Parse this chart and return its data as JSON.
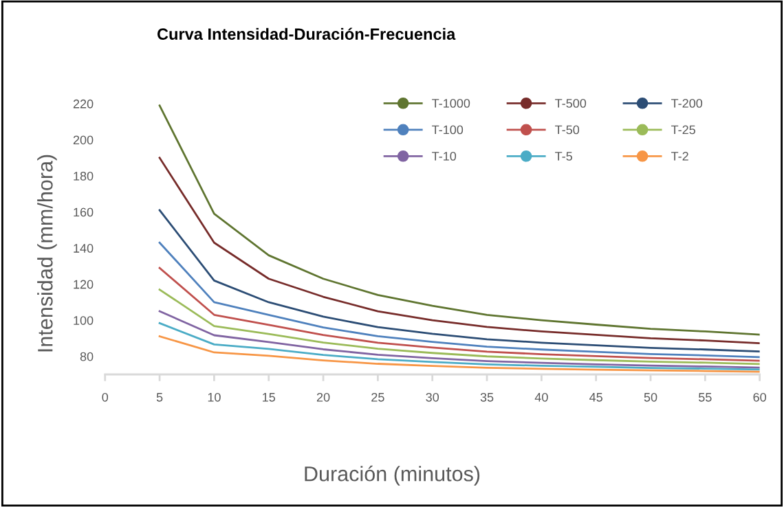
{
  "chart_data": {
    "type": "line",
    "title": "Curva Intensidad-Duración-Frecuencia",
    "xlabel": "Duración (minutos)",
    "ylabel": "Intensidad (mm/hora)",
    "x": [
      5,
      10,
      15,
      20,
      25,
      30,
      35,
      40,
      45,
      50,
      55,
      60
    ],
    "xlim": [
      0,
      60
    ],
    "xticks": [
      0,
      5,
      10,
      15,
      20,
      25,
      30,
      35,
      40,
      45,
      50,
      55,
      60
    ],
    "ylim": [
      70,
      220
    ],
    "yticks": [
      80,
      100,
      120,
      140,
      160,
      180,
      200,
      220
    ],
    "grid": false,
    "legend": "top right",
    "line_style": "solid",
    "series": [
      {
        "name": "T-1000",
        "color": "#5f7530",
        "values": [
          219,
          159,
          136,
          123,
          114,
          108,
          103,
          100,
          97.6,
          95.3,
          93.8,
          92
        ]
      },
      {
        "name": "T-500",
        "color": "#772c2a",
        "values": [
          190,
          143,
          123,
          113,
          105,
          100,
          96.3,
          93.8,
          91.9,
          90,
          88.8,
          87.3
        ]
      },
      {
        "name": "T-200",
        "color": "#2c4d75",
        "values": [
          161,
          122,
          110,
          102,
          96.2,
          92.5,
          89.5,
          87.6,
          86.1,
          84.7,
          83.8,
          82.7
        ]
      },
      {
        "name": "T-100",
        "color": "#4f81bd",
        "values": [
          143,
          110,
          103,
          96,
          91.2,
          88,
          85.4,
          83.8,
          82.5,
          81.3,
          80.5,
          79.6
        ]
      },
      {
        "name": "T-50",
        "color": "#c0504d",
        "values": [
          129,
          103,
          97.5,
          91.8,
          87.6,
          84.9,
          82.6,
          81.2,
          80.1,
          79.1,
          78.4,
          77.6
        ]
      },
      {
        "name": "T-25",
        "color": "#9bbb59",
        "values": [
          117,
          96.8,
          92.4,
          87.7,
          84.2,
          81.9,
          80,
          78.8,
          77.9,
          77.1,
          76.5,
          75.8
        ]
      },
      {
        "name": "T-10",
        "color": "#8064a2",
        "values": [
          105,
          91.7,
          87.9,
          83.9,
          80.9,
          79,
          77.4,
          76.4,
          75.6,
          74.9,
          74.4,
          73.8
        ]
      },
      {
        "name": "T-5",
        "color": "#4bacc6",
        "values": [
          98.4,
          86.6,
          84.1,
          80.8,
          78.4,
          76.9,
          75.6,
          74.8,
          74.2,
          73.6,
          73.2,
          72.7
        ]
      },
      {
        "name": "T-2",
        "color": "#f79646",
        "values": [
          91.1,
          82.2,
          80.3,
          77.8,
          75.9,
          74.7,
          73.7,
          73.1,
          72.6,
          72.2,
          71.9,
          71.5
        ]
      }
    ]
  }
}
